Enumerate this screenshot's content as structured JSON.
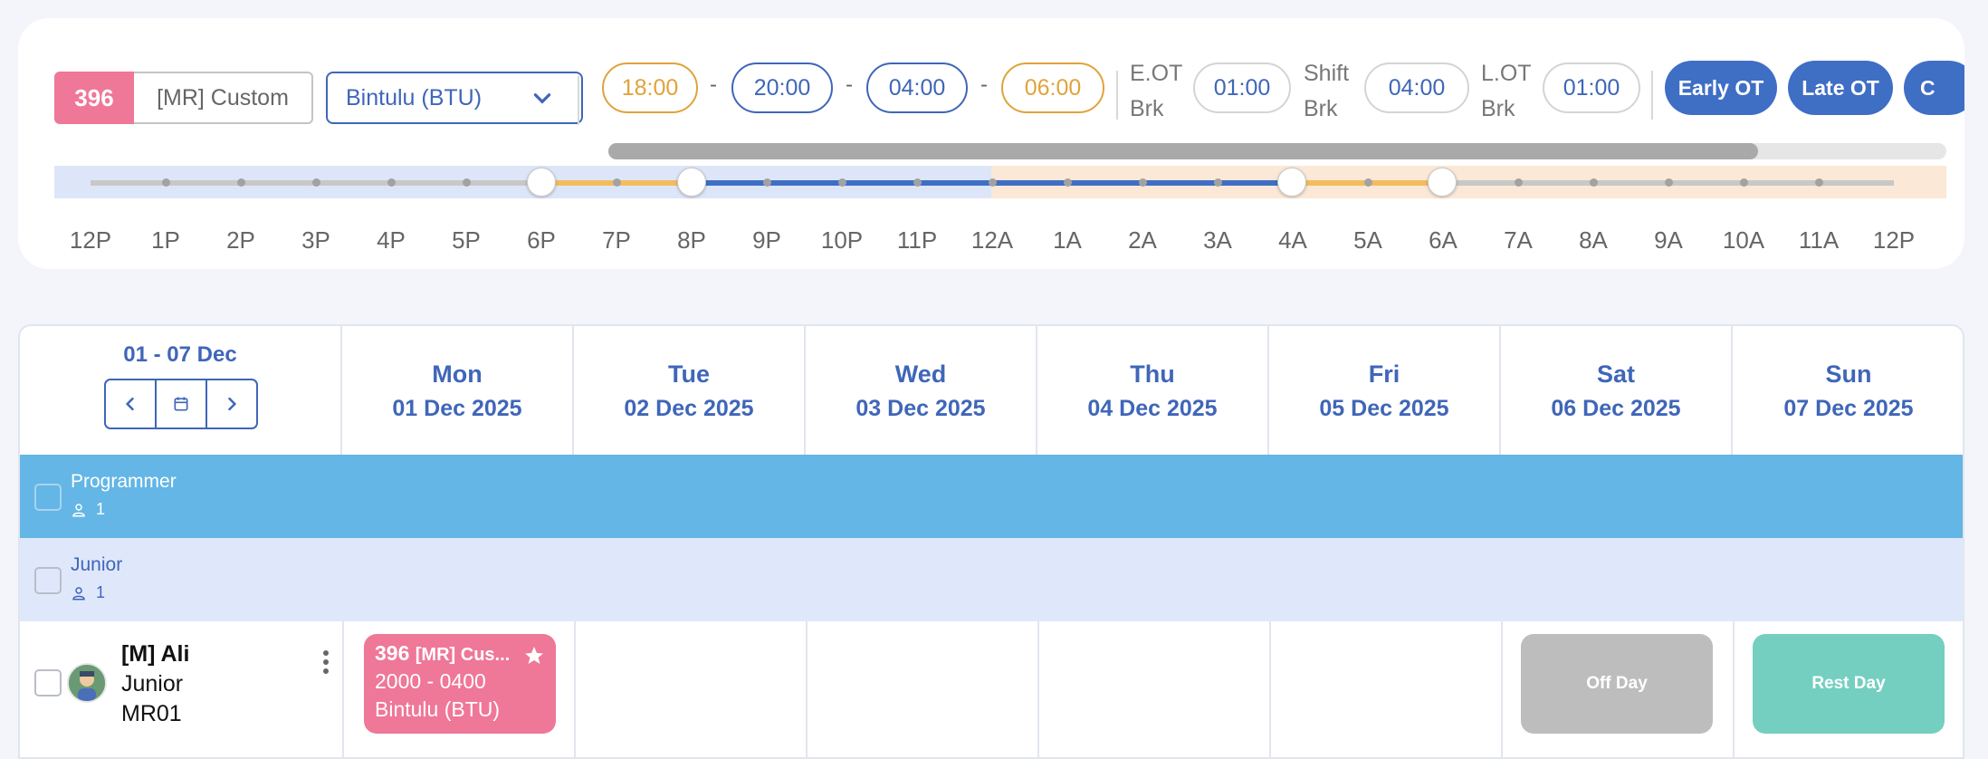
{
  "toolbar": {
    "shift_id": "396",
    "shift_name": "[MR] Custom",
    "location": "Bintulu (BTU)",
    "times": [
      "18:00",
      "20:00",
      "04:00",
      "06:00"
    ],
    "dash": "-",
    "eot_label": [
      "E.OT",
      "Brk"
    ],
    "eot_value": "01:00",
    "shift_brk_label": [
      "Shift",
      "Brk"
    ],
    "shift_brk_value": "04:00",
    "lot_label": [
      "L.OT",
      "Brk"
    ],
    "lot_value": "01:00",
    "early_ot": "Early OT",
    "late_ot": "Late OT",
    "next_btn_partial": "C"
  },
  "timeline": {
    "labels": [
      "12P",
      "1P",
      "2P",
      "3P",
      "4P",
      "5P",
      "6P",
      "7P",
      "8P",
      "9P",
      "10P",
      "11P",
      "12A",
      "1A",
      "2A",
      "3A",
      "4A",
      "5A",
      "6A",
      "7A",
      "8A",
      "9A",
      "10A",
      "11A",
      "12P"
    ],
    "colors": {
      "early": "#f2bd5f",
      "shift": "#3f6ec5",
      "late": "#f2bd5f",
      "idle": "#c8c8c8"
    }
  },
  "schedule": {
    "range": "01 - 07 Dec",
    "days": [
      {
        "day": "Mon",
        "date": "01 Dec 2025"
      },
      {
        "day": "Tue",
        "date": "02 Dec 2025"
      },
      {
        "day": "Wed",
        "date": "03 Dec 2025"
      },
      {
        "day": "Thu",
        "date": "04 Dec 2025"
      },
      {
        "day": "Fri",
        "date": "05 Dec 2025"
      },
      {
        "day": "Sat",
        "date": "06 Dec 2025"
      },
      {
        "day": "Sun",
        "date": "07 Dec 2025"
      }
    ],
    "groups": [
      {
        "name": "Programmer",
        "count": "1"
      },
      {
        "name": "Junior",
        "count": "1"
      }
    ],
    "employee": {
      "name": "[M] Ali",
      "role": "Junior",
      "code": "MR01",
      "mon_shift": {
        "id": "396",
        "name": "[MR] Cus...",
        "time": "2000 - 0400",
        "location": "Bintulu (BTU)"
      },
      "sat": "Off Day",
      "sun": "Rest Day"
    }
  }
}
